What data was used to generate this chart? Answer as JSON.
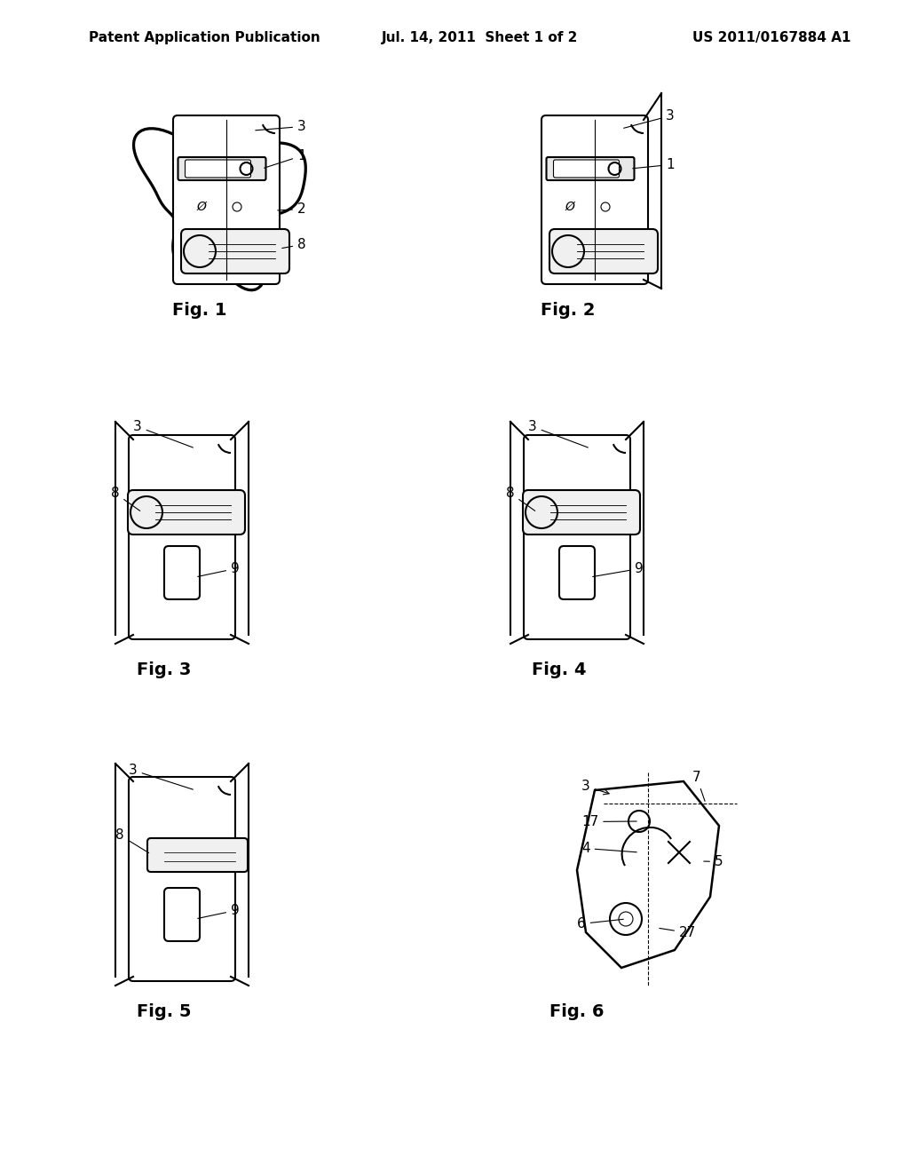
{
  "background_color": "#ffffff",
  "header_left": "Patent Application Publication",
  "header_mid": "Jul. 14, 2011  Sheet 1 of 2",
  "header_right": "US 2011/0167884 A1",
  "fig_labels": [
    "Fig. 1",
    "Fig. 2",
    "Fig. 3",
    "Fig. 4",
    "Fig. 5",
    "Fig. 6"
  ],
  "line_color": "#000000",
  "line_width": 1.5,
  "lw_thin": 0.8
}
